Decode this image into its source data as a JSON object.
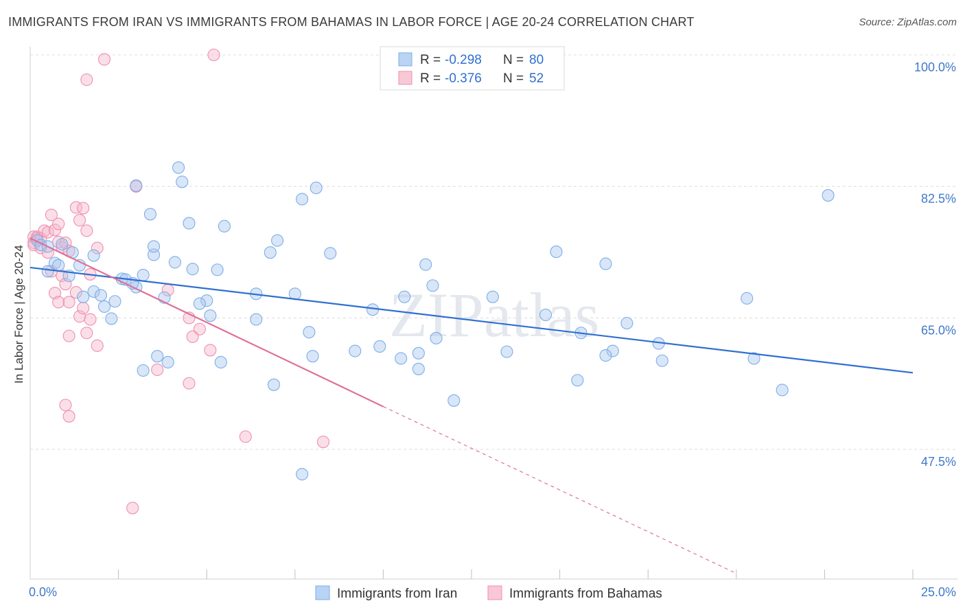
{
  "title": "IMMIGRANTS FROM IRAN VS IMMIGRANTS FROM BAHAMAS IN LABOR FORCE | AGE 20-24 CORRELATION CHART",
  "source": "Source: ZipAtlas.com",
  "watermark": "ZIPatlas",
  "chart_data": {
    "type": "scatter",
    "xlabel": "",
    "ylabel": "In Labor Force | Age 20-24",
    "xlim": [
      0,
      25
    ],
    "ylim": [
      30,
      102
    ],
    "x_tick_labels": [
      {
        "value": 0,
        "label": "0.0%"
      },
      {
        "value": 25,
        "label": "25.0%"
      }
    ],
    "y_tick_labels": [
      {
        "value": 100,
        "label": "100.0%"
      },
      {
        "value": 82.5,
        "label": "82.5%"
      },
      {
        "value": 65,
        "label": "65.0%"
      },
      {
        "value": 47.5,
        "label": "47.5%"
      }
    ],
    "legend": [
      {
        "name": "Immigrants from Iran",
        "r_label": "R =",
        "r": "-0.298",
        "n_label": "N =",
        "n": "80",
        "color": "#7aaee8",
        "fill": "#b9d3f3"
      },
      {
        "name": "Immigrants from Bahamas",
        "r_label": "R =",
        "r": "-0.376",
        "n_label": "N =",
        "n": "52",
        "color": "#ee8fae",
        "fill": "#f8c8d7"
      }
    ],
    "series": [
      {
        "name": "Immigrants from Iran",
        "color": "#7aaee8",
        "trend": {
          "x0": 0,
          "y0": 71.7,
          "x1": 25,
          "y1": 57.7,
          "color": "#2f6fd0"
        },
        "points": [
          [
            0.2,
            75.3
          ],
          [
            0.3,
            74.7
          ],
          [
            0.5,
            74.5
          ],
          [
            0.5,
            71.2
          ],
          [
            0.7,
            72.3
          ],
          [
            0.8,
            72.0
          ],
          [
            1.1,
            70.6
          ],
          [
            1.2,
            73.7
          ],
          [
            1.4,
            72.0
          ],
          [
            1.8,
            73.3
          ],
          [
            0.9,
            74.8
          ],
          [
            1.5,
            67.8
          ],
          [
            1.8,
            68.5
          ],
          [
            2.0,
            68.0
          ],
          [
            2.1,
            66.5
          ],
          [
            2.6,
            70.2
          ],
          [
            3.0,
            69.1
          ],
          [
            3.2,
            70.7
          ],
          [
            2.4,
            67.2
          ],
          [
            2.9,
            69.6
          ],
          [
            3.5,
            73.4
          ],
          [
            2.7,
            70.1
          ],
          [
            3.5,
            74.5
          ],
          [
            2.3,
            64.9
          ],
          [
            3.2,
            58.0
          ],
          [
            3.6,
            59.9
          ],
          [
            3.9,
            59.1
          ],
          [
            3.8,
            67.7
          ],
          [
            4.1,
            72.4
          ],
          [
            4.2,
            85.0
          ],
          [
            4.3,
            83.1
          ],
          [
            3.0,
            82.6
          ],
          [
            3.4,
            78.8
          ],
          [
            4.5,
            77.6
          ],
          [
            5.0,
            67.3
          ],
          [
            4.6,
            71.5
          ],
          [
            5.1,
            65.3
          ],
          [
            5.4,
            59.1
          ],
          [
            4.8,
            66.9
          ],
          [
            5.5,
            77.2
          ],
          [
            5.3,
            71.4
          ],
          [
            6.4,
            68.2
          ],
          [
            6.4,
            64.8
          ],
          [
            6.8,
            73.7
          ],
          [
            7.0,
            75.3
          ],
          [
            6.9,
            56.1
          ],
          [
            7.5,
            68.2
          ],
          [
            8.0,
            59.9
          ],
          [
            7.7,
            44.2
          ],
          [
            7.9,
            63.1
          ],
          [
            7.7,
            80.8
          ],
          [
            8.1,
            82.3
          ],
          [
            8.5,
            73.6
          ],
          [
            9.2,
            60.6
          ],
          [
            9.7,
            66.1
          ],
          [
            9.9,
            61.2
          ],
          [
            10.5,
            59.6
          ],
          [
            10.6,
            67.8
          ],
          [
            11.0,
            58.2
          ],
          [
            11.2,
            72.1
          ],
          [
            11.5,
            62.3
          ],
          [
            11.0,
            60.3
          ],
          [
            11.4,
            69.3
          ],
          [
            12.0,
            54.0
          ],
          [
            13.1,
            67.8
          ],
          [
            13.5,
            60.5
          ],
          [
            14.6,
            65.4
          ],
          [
            14.9,
            73.8
          ],
          [
            15.6,
            63.0
          ],
          [
            15.5,
            56.7
          ],
          [
            16.5,
            60.6
          ],
          [
            16.3,
            72.2
          ],
          [
            16.9,
            64.3
          ],
          [
            17.8,
            61.6
          ],
          [
            17.9,
            59.3
          ],
          [
            16.3,
            60.0
          ],
          [
            20.5,
            59.6
          ],
          [
            21.3,
            55.4
          ],
          [
            22.6,
            81.3
          ],
          [
            20.3,
            67.6
          ]
        ]
      },
      {
        "name": "Immigrants from Bahamas",
        "color": "#ee8fae",
        "trend": {
          "x0": 0,
          "y0": 75.6,
          "x1": 10,
          "y1": 53.2,
          "dashed_to_x": 20,
          "dashed_to_y": 31.0,
          "color": "#e07097"
        },
        "points": [
          [
            0.1,
            75.8
          ],
          [
            0.1,
            75.0
          ],
          [
            0.1,
            74.7
          ],
          [
            0.2,
            75.8
          ],
          [
            0.2,
            75.6
          ],
          [
            0.3,
            75.6
          ],
          [
            0.4,
            76.6
          ],
          [
            0.3,
            74.3
          ],
          [
            0.5,
            76.4
          ],
          [
            0.6,
            78.7
          ],
          [
            0.7,
            76.7
          ],
          [
            0.8,
            77.5
          ],
          [
            0.8,
            75.1
          ],
          [
            0.9,
            74.4
          ],
          [
            1.0,
            75.0
          ],
          [
            1.1,
            73.9
          ],
          [
            0.5,
            73.7
          ],
          [
            0.6,
            71.2
          ],
          [
            0.7,
            68.3
          ],
          [
            0.8,
            67.1
          ],
          [
            0.9,
            70.6
          ],
          [
            1.0,
            69.5
          ],
          [
            1.1,
            67.1
          ],
          [
            1.3,
            79.7
          ],
          [
            1.4,
            78.0
          ],
          [
            1.5,
            79.6
          ],
          [
            1.6,
            76.6
          ],
          [
            1.7,
            70.8
          ],
          [
            1.9,
            74.3
          ],
          [
            1.3,
            68.4
          ],
          [
            1.4,
            65.2
          ],
          [
            1.5,
            66.3
          ],
          [
            1.6,
            63.0
          ],
          [
            1.7,
            64.8
          ],
          [
            1.1,
            62.6
          ],
          [
            1.9,
            61.3
          ],
          [
            1.0,
            53.4
          ],
          [
            1.1,
            51.9
          ],
          [
            1.6,
            96.7
          ],
          [
            2.1,
            99.4
          ],
          [
            5.2,
            100.0
          ],
          [
            3.0,
            82.5
          ],
          [
            2.9,
            39.7
          ],
          [
            3.6,
            58.1
          ],
          [
            3.9,
            68.7
          ],
          [
            4.5,
            65.0
          ],
          [
            4.8,
            63.5
          ],
          [
            4.6,
            62.5
          ],
          [
            5.1,
            60.7
          ],
          [
            4.5,
            56.3
          ],
          [
            6.1,
            49.2
          ],
          [
            8.3,
            48.5
          ]
        ]
      }
    ]
  }
}
